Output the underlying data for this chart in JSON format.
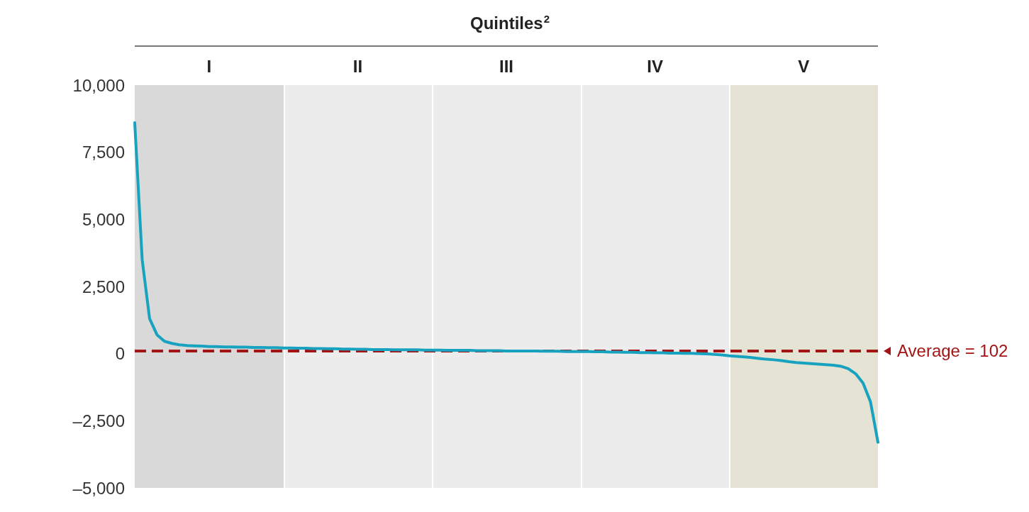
{
  "chart_data": {
    "type": "line",
    "title": "Quintiles$^{2}$",
    "categories": [
      null,
      null,
      null,
      null,
      null,
      null,
      null,
      null,
      null,
      null,
      null,
      null,
      null,
      null,
      null,
      null,
      null,
      null,
      null,
      null,
      null,
      null,
      null,
      null,
      null,
      null,
      null,
      null,
      null,
      null,
      null,
      null,
      null,
      null,
      null,
      null,
      null,
      null,
      null,
      null,
      null,
      null,
      null,
      null,
      null,
      null,
      null,
      null,
      null,
      null,
      null,
      null,
      null,
      null,
      null,
      null,
      null,
      null,
      null,
      null,
      null,
      null,
      null,
      null,
      null,
      null,
      null,
      null,
      null,
      null,
      null,
      null,
      null,
      null,
      null,
      null,
      null,
      null,
      null,
      null,
      null,
      null,
      null,
      null,
      null,
      null,
      null,
      null,
      null,
      null,
      null,
      null,
      null,
      null,
      null,
      null,
      null,
      null,
      null,
      null,
      null
    ],
    "series": [
      {
        "color": "#17a2bf",
        "values": [
          8600,
          3500,
          1300,
          700,
          460,
          380,
          330,
          300,
          290,
          280,
          260,
          260,
          250,
          250,
          240,
          240,
          230,
          230,
          220,
          220,
          210,
          210,
          200,
          200,
          190,
          190,
          180,
          180,
          170,
          170,
          160,
          160,
          150,
          150,
          150,
          140,
          140,
          140,
          140,
          130,
          130,
          130,
          120,
          120,
          120,
          120,
          110,
          110,
          110,
          110,
          100,
          100,
          100,
          100,
          100,
          90,
          90,
          90,
          80,
          80,
          80,
          80,
          70,
          70,
          60,
          60,
          50,
          50,
          40,
          40,
          30,
          30,
          20,
          20,
          10,
          10,
          0,
          -10,
          -30,
          -50,
          -80,
          -100,
          -120,
          -150,
          -180,
          -210,
          -230,
          -260,
          -300,
          -330,
          -350,
          -370,
          -390,
          -410,
          -430,
          -470,
          -560,
          -750,
          -1100,
          -1800,
          -3300
        ]
      }
    ],
    "ylim": [
      -5000,
      10000
    ],
    "yticks": [
      {
        "value": -5000,
        "label": "–5,000"
      },
      {
        "value": -2500,
        "label": "–2,500"
      },
      0,
      {
        "value": 2500,
        "label": "2,500"
      },
      {
        "value": 5000,
        "label": "5,000"
      },
      {
        "value": 7500,
        "label": "7,500"
      },
      {
        "value": 10000,
        "label": "10,000"
      }
    ],
    "tick_labels": "y",
    "grid": false,
    "marker": "none",
    "line_style": "solid",
    "annotations": [
      "I",
      "II",
      "III",
      "IV",
      "V"
    ],
    "ref_lines": [
      {
        "axis": "y",
        "value": 102,
        "label": "Average = 102",
        "color": "#a31515",
        "line_style": "dashed"
      }
    ]
  }
}
